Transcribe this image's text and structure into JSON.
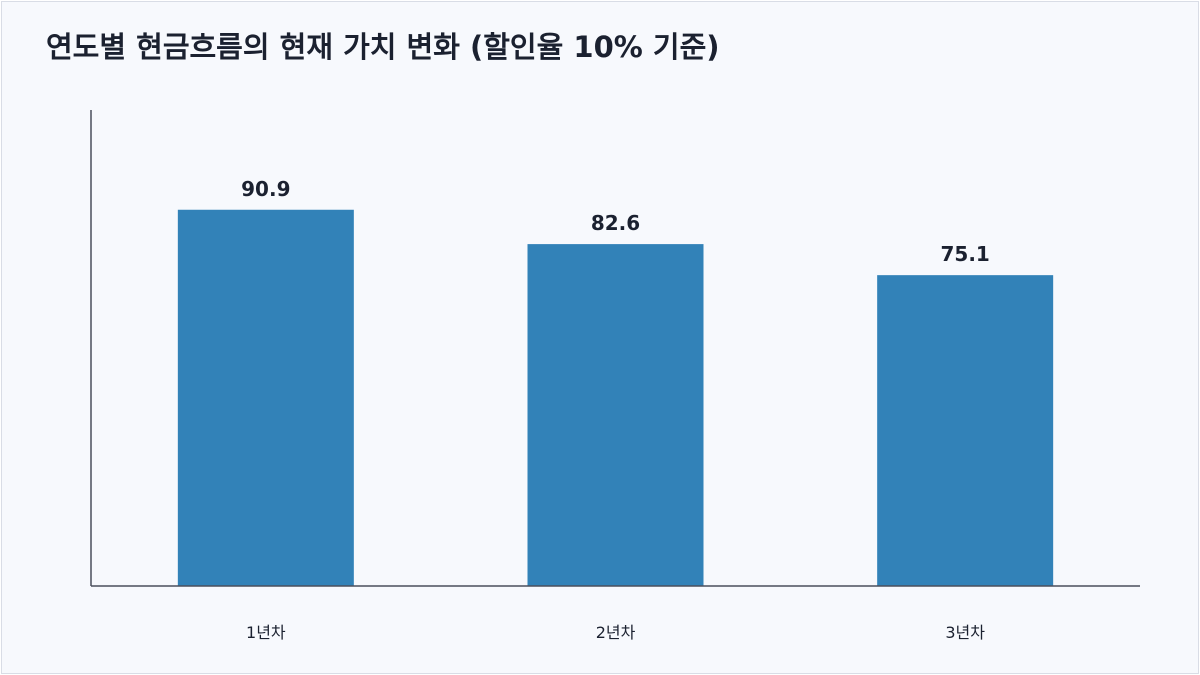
{
  "chart_data": {
    "type": "bar",
    "title": "연도별 현금흐름의 현재 가치 변화 (할인율 10% 기준)",
    "categories": [
      "1년차",
      "2년차",
      "3년차"
    ],
    "values": [
      90.9,
      82.6,
      75.1
    ],
    "value_labels": [
      "90.9",
      "82.6",
      "75.1"
    ],
    "ylim": [
      0,
      115
    ],
    "bar_color": "#3282b8",
    "axis_color": "#4a4f5c",
    "grid": false,
    "legend": "none"
  }
}
